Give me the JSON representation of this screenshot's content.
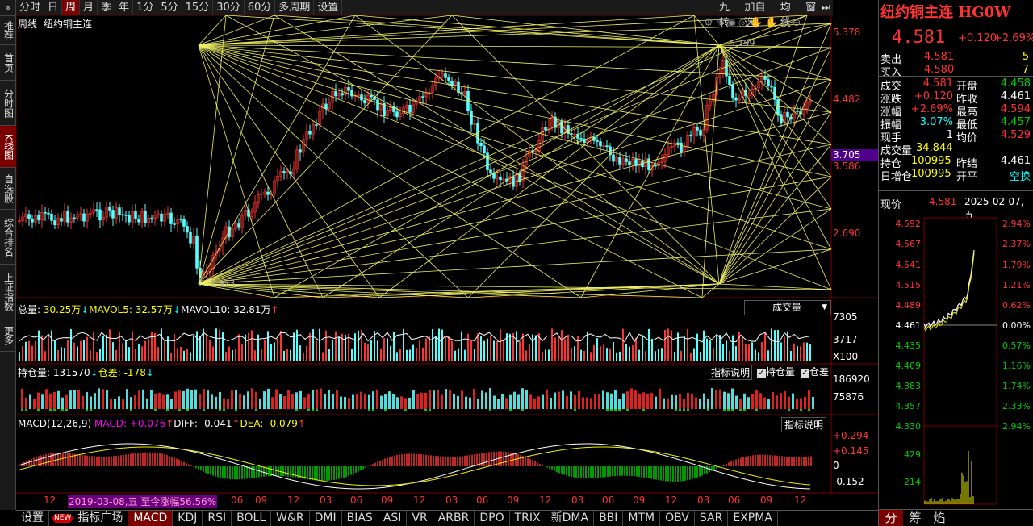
{
  "sidebar": [
    "推荐",
    "首页",
    "分时图",
    "K线图",
    "自选股",
    "综合排名",
    "上证指数",
    "更多"
  ],
  "topbar": {
    "menu": "»",
    "periods": [
      "分时",
      "日",
      "周",
      "月",
      "季",
      "年",
      "1分",
      "5分",
      "15分",
      "30分",
      "60分",
      "多周期",
      "设置"
    ],
    "active": "周",
    "right": [
      "九转",
      "加自选",
      "均线",
      "窗"
    ]
  },
  "main": {
    "period_label": "周线",
    "name": "纽约铜主连",
    "price_axis": [
      "5.378",
      "4.482",
      "3.705",
      "3.586",
      "2.690"
    ],
    "marks": {
      "high": "5.199",
      "low": "1.973"
    },
    "current_price_tag": "3.705"
  },
  "volume": {
    "label": "总量: ",
    "value": "30.25万",
    "ma5_label": "MAVOL5: ",
    "ma5": "32.57万",
    "ma10_label": "MAVOL10: ",
    "ma10": "32.81万",
    "axis": [
      "7305",
      "3717",
      "X100"
    ],
    "selector": "成交量"
  },
  "oi": {
    "label": "持仓量: ",
    "value": "131570",
    "diff_label": "仓差: ",
    "diff": "-178",
    "help": "指标说明",
    "check1": "持仓量",
    "check2": "仓差",
    "axis": [
      "186920",
      "75876"
    ]
  },
  "macd": {
    "label": "MACD(12,26,9)",
    "macd_label": "MACD: ",
    "macd": "+0.076",
    "diff_label": "DIFF: ",
    "diff": "-0.041",
    "dea_label": "DEA: ",
    "dea": "-0.079",
    "help": "指标说明",
    "axis": [
      "+0.294",
      "+0.145",
      "0",
      "-0.152"
    ]
  },
  "xaxis": [
    "12",
    "06",
    "09",
    "12",
    "03",
    "06",
    "09",
    "12",
    "03",
    "06",
    "09",
    "12",
    "03",
    "06",
    "09",
    "12",
    "03",
    "06",
    "09",
    "12"
  ],
  "xaxis_note": "2019-03-08,五 至今涨幅56.56%",
  "bottom_tabs": [
    "设置",
    "NEW",
    "指标广场",
    "MACD",
    "KDJ",
    "RSI",
    "BOLL",
    "W&R",
    "DMI",
    "BIAS",
    "ASI",
    "VR",
    "ARBR",
    "DPO",
    "TRIX",
    "新DMA",
    "BBI",
    "MTM",
    "OBV",
    "SAR",
    "EXPMA"
  ],
  "bottom_active": "MACD",
  "quote": {
    "name": "纽约铜主连 HG0W",
    "price": "4.581",
    "change": "+0.120",
    "pct": "+2.69%",
    "sell_label": "卖出",
    "sell": "4.581",
    "sell_vol": "5",
    "buy_label": "买入",
    "buy": "4.580",
    "buy_vol": "7",
    "rows": [
      {
        "l1": "成交",
        "v1": "4.581",
        "l2": "开盘",
        "v2": "4.458",
        "c1": "red",
        "c2": "grn"
      },
      {
        "l1": "涨跌",
        "v1": "+0.120",
        "l2": "昨收",
        "v2": "4.461",
        "c1": "red",
        "c2": "wht"
      },
      {
        "l1": "涨幅",
        "v1": "+2.69%",
        "l2": "最高",
        "v2": "4.594",
        "c1": "red",
        "c2": "red"
      },
      {
        "l1": "振幅",
        "v1": "3.07%",
        "l2": "最低",
        "v2": "4.457",
        "c1": "cyan",
        "c2": "grn"
      },
      {
        "l1": "现手",
        "v1": "1",
        "l2": "均价",
        "v2": "4.529",
        "c1": "wht",
        "c2": "red"
      }
    ],
    "vol_label": "成交量",
    "vol": "34,844",
    "oi_label": "持仓",
    "oi": "100995",
    "settle_label": "昨结",
    "settle": "4.461",
    "daily_label": "日增仓",
    "daily": "100995",
    "openclose_label": "开平",
    "openclose": "空换"
  },
  "intraday": {
    "label": "现价",
    "price": "4.581",
    "date": "2025-02-07,五",
    "left_axis": [
      "4.592",
      "4.567",
      "4.541",
      "4.515",
      "4.489",
      "4.461",
      "4.435",
      "4.409",
      "4.383",
      "4.357",
      "4.330",
      "429",
      "214"
    ],
    "right_axis": [
      "2.94%",
      "2.37%",
      "1.79%",
      "1.21%",
      "0.62%",
      "0.00%",
      "0.57%",
      "1.16%",
      "1.74%",
      "2.33%",
      "2.94%"
    ],
    "tabs": [
      "分",
      "筹",
      "焰"
    ]
  }
}
